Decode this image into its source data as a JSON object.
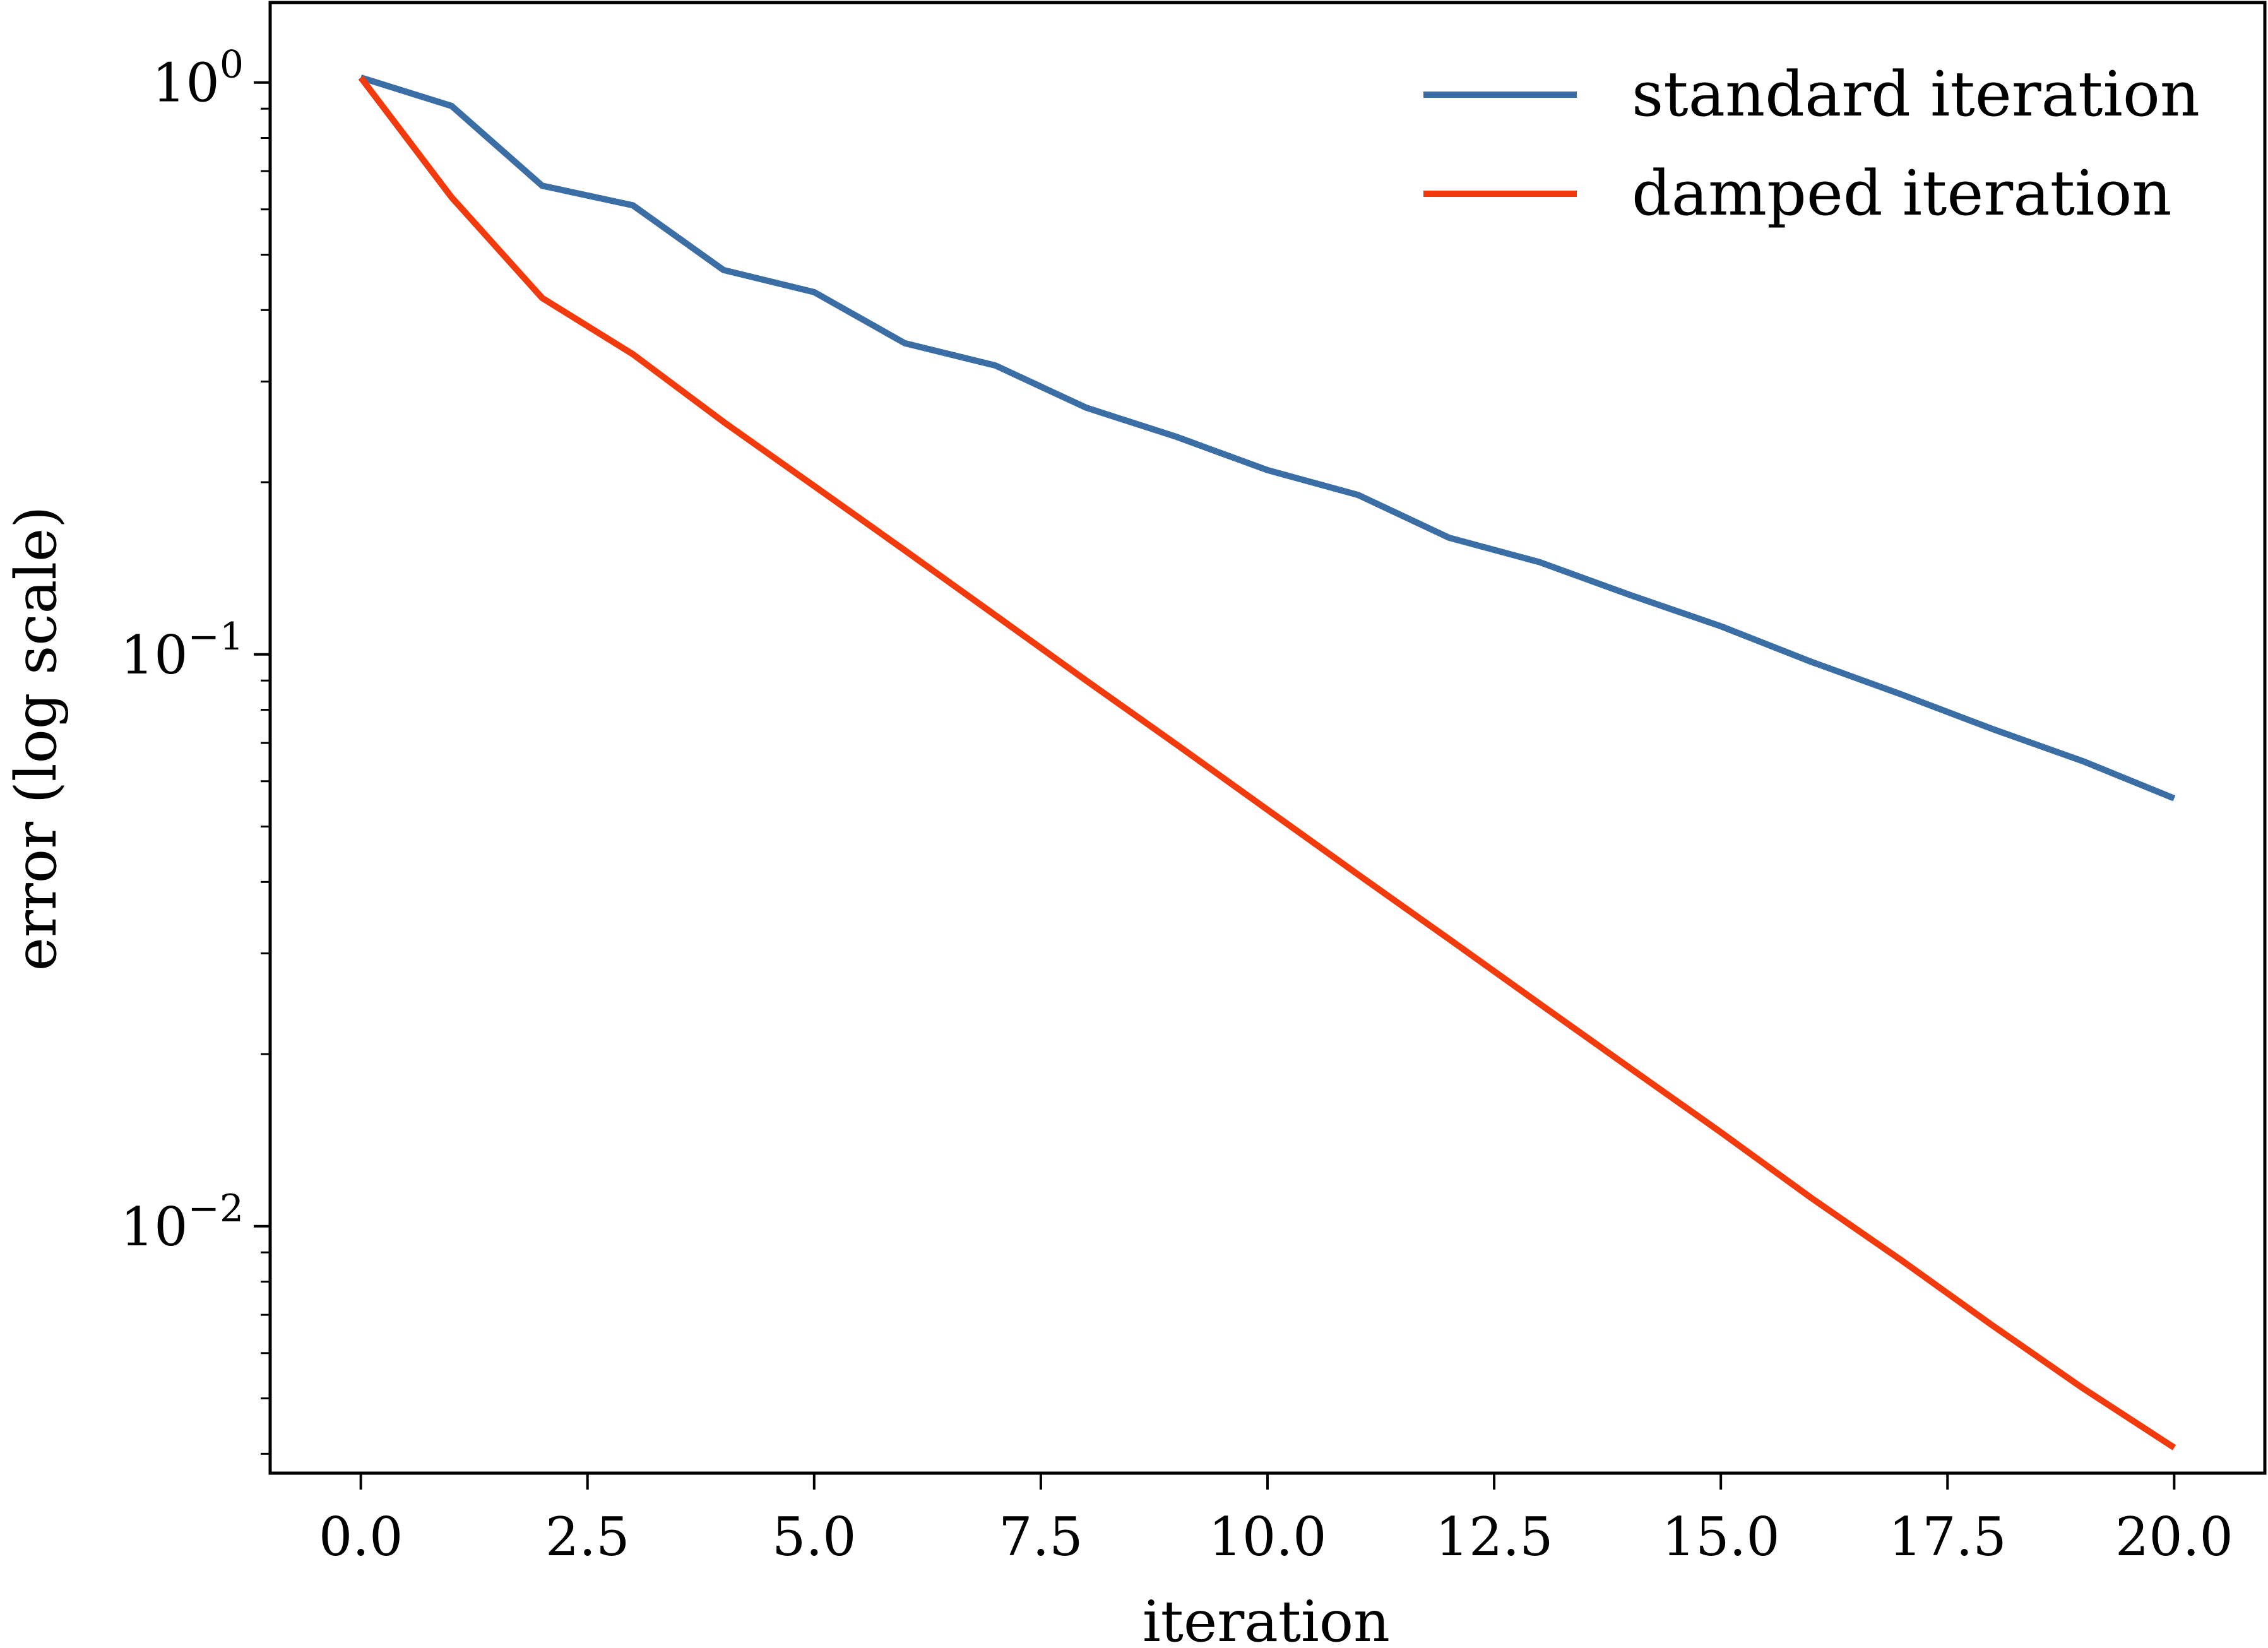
{
  "chart_data": {
    "type": "line",
    "title": "",
    "xlabel": "iteration",
    "ylabel": "error (log scale)",
    "x_scale": "linear",
    "y_scale": "log",
    "xlim": [
      -1.0,
      21.0
    ],
    "ylim": [
      0.0037,
      1.38
    ],
    "x_ticks": [
      0,
      2.5,
      5,
      7.5,
      10,
      12.5,
      15,
      17.5,
      20
    ],
    "x_tick_labels": [
      "0.0",
      "2.5",
      "5.0",
      "7.5",
      "10.0",
      "12.5",
      "15.0",
      "17.5",
      "20.0"
    ],
    "y_ticks": [
      {
        "value": 1,
        "base": "10",
        "exponent": "0"
      },
      {
        "value": 0.1,
        "base": "10",
        "exponent": "−1"
      },
      {
        "value": 0.01,
        "base": "10",
        "exponent": "−2"
      }
    ],
    "grid": false,
    "legend_position": "top-right",
    "x": [
      0,
      1,
      2,
      3,
      4,
      5,
      6,
      7,
      8,
      9,
      10,
      11,
      12,
      13,
      14,
      15,
      16,
      17,
      18,
      19,
      20
    ],
    "series": [
      {
        "name": "standard iteration",
        "color": "#3a6ea5",
        "values": [
          1.02,
          0.91,
          0.66,
          0.61,
          0.47,
          0.43,
          0.35,
          0.32,
          0.27,
          0.24,
          0.21,
          0.19,
          0.16,
          0.145,
          0.127,
          0.112,
          0.097,
          0.085,
          0.074,
          0.065,
          0.056
        ]
      },
      {
        "name": "damped iteration",
        "color": "#f23a0c",
        "values": [
          1.02,
          0.63,
          0.42,
          0.335,
          0.255,
          0.197,
          0.152,
          0.117,
          0.09,
          0.0695,
          0.0535,
          0.0412,
          0.0318,
          0.0245,
          0.0189,
          0.0146,
          0.0112,
          0.0087,
          0.0067,
          0.0052,
          0.0041
        ]
      }
    ]
  }
}
